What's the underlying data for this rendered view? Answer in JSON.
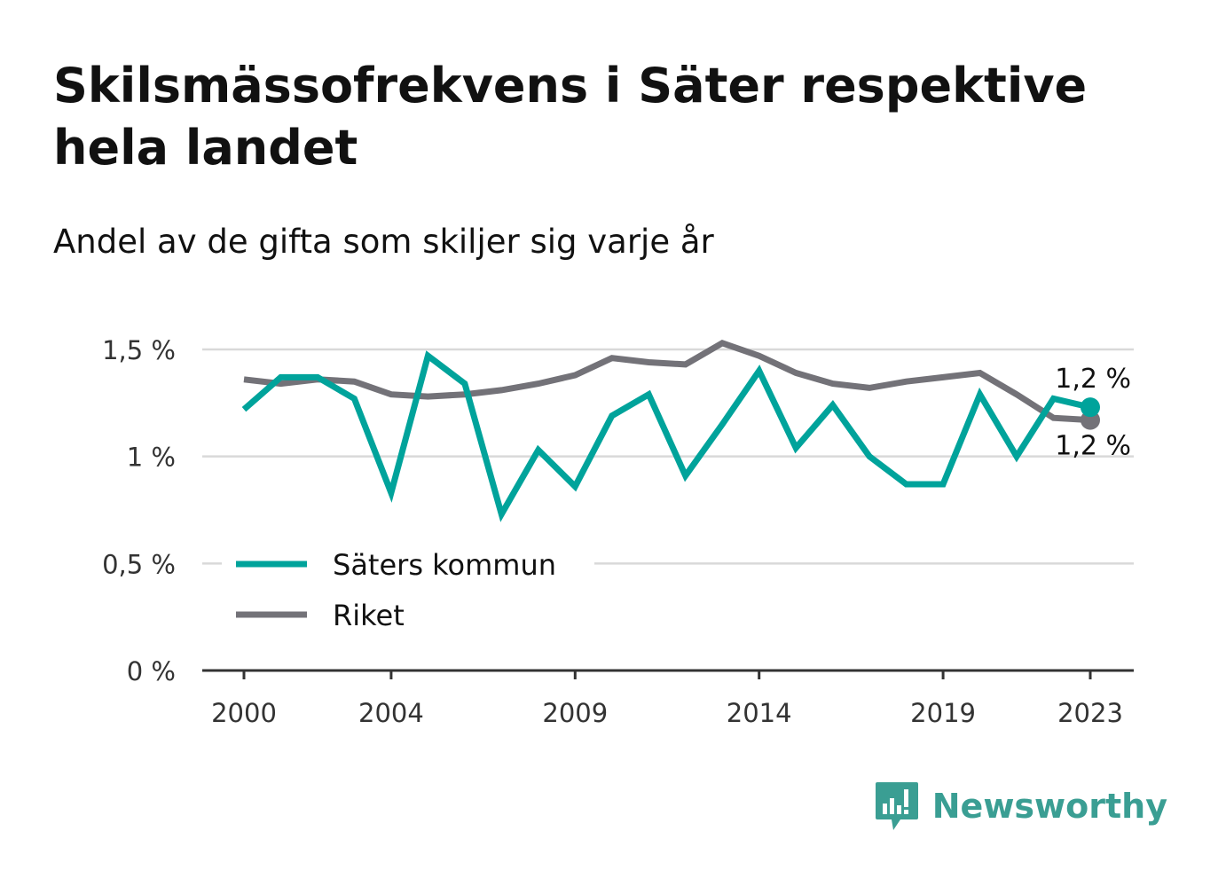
{
  "title": "Skilsmässofrekvens i Säter respektive hela landet",
  "subtitle": "Andel av de gifta som skiljer sig varje år",
  "brand": {
    "name": "Newsworthy",
    "icon": "newsworthy-logo-icon",
    "color": "#3a9e93"
  },
  "chart_data": {
    "type": "line",
    "title": "Skilsmässofrekvens i Säter respektive hela landet",
    "subtitle": "Andel av de gifta som skiljer sig varje år",
    "xlabel": "",
    "ylabel": "",
    "x": [
      2000,
      2001,
      2002,
      2003,
      2004,
      2005,
      2006,
      2007,
      2008,
      2009,
      2010,
      2011,
      2012,
      2013,
      2014,
      2015,
      2016,
      2017,
      2018,
      2019,
      2020,
      2021,
      2022,
      2023
    ],
    "x_ticks": [
      2000,
      2004,
      2009,
      2014,
      2019,
      2023
    ],
    "x_tick_labels": [
      "2000",
      "2004",
      "2009",
      "2014",
      "2019",
      "2023"
    ],
    "ylim": [
      0,
      1.5
    ],
    "y_ticks": [
      0,
      0.5,
      1,
      1.5
    ],
    "y_tick_labels": [
      "0 %",
      "0,5 %",
      "1 %",
      "1,5 %"
    ],
    "grid": true,
    "legend_position": "bottom-left",
    "series": [
      {
        "name": "Säters kommun",
        "color": "#00a39b",
        "values": [
          1.22,
          1.37,
          1.37,
          1.27,
          0.83,
          1.47,
          1.34,
          0.73,
          1.03,
          0.86,
          1.19,
          1.29,
          0.91,
          1.15,
          1.4,
          1.04,
          1.24,
          1.0,
          0.87,
          0.87,
          1.29,
          1.0,
          1.27,
          1.23
        ],
        "end_label": "1,2 %",
        "end_marker": true
      },
      {
        "name": "Riket",
        "color": "#737278",
        "values": [
          1.36,
          1.34,
          1.36,
          1.35,
          1.29,
          1.28,
          1.29,
          1.31,
          1.34,
          1.38,
          1.46,
          1.44,
          1.43,
          1.53,
          1.47,
          1.39,
          1.34,
          1.32,
          1.35,
          1.37,
          1.39,
          1.29,
          1.18,
          1.17
        ],
        "end_label": "1,2 %",
        "end_marker": true
      }
    ]
  }
}
